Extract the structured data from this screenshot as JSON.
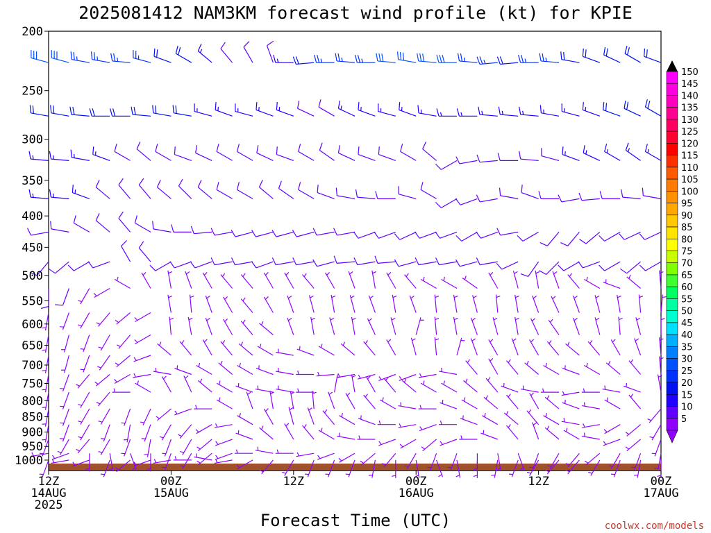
{
  "chart_data": {
    "type": "wind_barb_profile",
    "title": "2025081412 NAM3KM forecast wind profile (kt) for KPIE",
    "xlabel": "Forecast Time (UTC)",
    "ylabel": "",
    "y_scale": "log",
    "ylim": [
      1040,
      200
    ],
    "y_ticks": [
      200,
      250,
      300,
      350,
      400,
      450,
      500,
      550,
      600,
      650,
      700,
      750,
      800,
      850,
      900,
      950,
      1000
    ],
    "x_range_hours": [
      0,
      60
    ],
    "x_ticks": [
      {
        "hour": 0,
        "lines": [
          "12Z",
          "14AUG",
          "2025"
        ]
      },
      {
        "hour": 12,
        "lines": [
          "00Z",
          "15AUG"
        ]
      },
      {
        "hour": 24,
        "lines": [
          "12Z"
        ]
      },
      {
        "hour": 36,
        "lines": [
          "00Z",
          "16AUG"
        ]
      },
      {
        "hour": 48,
        "lines": [
          "12Z"
        ]
      },
      {
        "hour": 60,
        "lines": [
          "00Z",
          "17AUG"
        ]
      }
    ],
    "surface_pressure": 1013,
    "surface_color": "#a0522d",
    "time_step_hours": 2,
    "levels": [
      225,
      275,
      325,
      375,
      425,
      475,
      525,
      575,
      625,
      675,
      725,
      775,
      825,
      875,
      925,
      975,
      1000
    ],
    "wind_dir_deg_by_level": [
      [
        285,
        285,
        280,
        280,
        275,
        285,
        290,
        300,
        310,
        320,
        330,
        340,
        270,
        265,
        270,
        275,
        270,
        275,
        280,
        275,
        270,
        275,
        265,
        265,
        270,
        275,
        280,
        290,
        295,
        300,
        290
      ],
      [
        280,
        280,
        275,
        270,
        270,
        275,
        280,
        280,
        285,
        290,
        285,
        290,
        290,
        295,
        300,
        295,
        290,
        285,
        290,
        280,
        270,
        270,
        275,
        275,
        275,
        280,
        285,
        290,
        290,
        295,
        300
      ],
      [
        275,
        275,
        280,
        290,
        300,
        310,
        300,
        290,
        295,
        300,
        300,
        295,
        290,
        300,
        305,
        295,
        290,
        290,
        300,
        310,
        240,
        260,
        265,
        270,
        275,
        285,
        290,
        295,
        300,
        305,
        300
      ],
      [
        275,
        275,
        290,
        310,
        320,
        320,
        310,
        315,
        310,
        300,
        300,
        310,
        305,
        300,
        290,
        280,
        275,
        270,
        285,
        300,
        240,
        250,
        260,
        280,
        290,
        270,
        260,
        265,
        270,
        275,
        280
      ],
      [
        260,
        280,
        300,
        310,
        320,
        300,
        280,
        270,
        265,
        260,
        255,
        255,
        255,
        255,
        260,
        260,
        250,
        250,
        245,
        250,
        250,
        240,
        250,
        260,
        240,
        220,
        220,
        230,
        240,
        245,
        245
      ],
      [
        220,
        230,
        240,
        250,
        330,
        320,
        240,
        250,
        250,
        260,
        260,
        250,
        260,
        260,
        255,
        265,
        260,
        265,
        255,
        260,
        260,
        255,
        260,
        245,
        215,
        225,
        240,
        250,
        240,
        230,
        240
      ],
      [
        180,
        200,
        210,
        240,
        300,
        330,
        350,
        340,
        330,
        320,
        320,
        330,
        330,
        320,
        330,
        340,
        350,
        330,
        320,
        300,
        300,
        305,
        330,
        345,
        350,
        340,
        320,
        300,
        290,
        310,
        355
      ],
      [
        190,
        200,
        210,
        220,
        230,
        240,
        350,
        355,
        340,
        330,
        320,
        330,
        340,
        345,
        350,
        345,
        340,
        350,
        340,
        355,
        350,
        345,
        355,
        350,
        340,
        335,
        340,
        345,
        350,
        355,
        5
      ],
      [
        190,
        195,
        200,
        210,
        220,
        240,
        355,
        350,
        340,
        330,
        320,
        310,
        340,
        350,
        345,
        350,
        335,
        345,
        15,
        355,
        350,
        340,
        345,
        350,
        335,
        325,
        340,
        345,
        355,
        345,
        0
      ],
      [
        190,
        195,
        200,
        215,
        230,
        250,
        310,
        320,
        330,
        320,
        310,
        300,
        280,
        290,
        300,
        310,
        320,
        330,
        345,
        355,
        15,
        340,
        330,
        340,
        330,
        320,
        310,
        320,
        330,
        340,
        355
      ],
      [
        190,
        200,
        220,
        230,
        240,
        260,
        280,
        290,
        300,
        310,
        300,
        290,
        280,
        270,
        265,
        260,
        255,
        250,
        250,
        260,
        280,
        320,
        330,
        320,
        310,
        300,
        290,
        300,
        310,
        320,
        355
      ],
      [
        190,
        200,
        210,
        220,
        270,
        300,
        330,
        335,
        310,
        300,
        290,
        280,
        280,
        270,
        10,
        350,
        330,
        320,
        310,
        300,
        300,
        310,
        320,
        290,
        280,
        270,
        260,
        270,
        280,
        290,
        350
      ],
      [
        190,
        200,
        210,
        210,
        200,
        205,
        230,
        250,
        270,
        300,
        340,
        350,
        350,
        355,
        340,
        330,
        320,
        300,
        280,
        270,
        290,
        300,
        310,
        320,
        330,
        310,
        290,
        280,
        300,
        320,
        220
      ],
      [
        190,
        200,
        210,
        200,
        190,
        200,
        210,
        220,
        240,
        260,
        300,
        330,
        345,
        340,
        320,
        300,
        290,
        270,
        260,
        250,
        270,
        290,
        300,
        310,
        320,
        300,
        280,
        260,
        240,
        230,
        210
      ],
      [
        200,
        210,
        220,
        210,
        200,
        190,
        200,
        210,
        230,
        250,
        290,
        310,
        330,
        320,
        300,
        280,
        270,
        250,
        240,
        230,
        250,
        270,
        290,
        320,
        340,
        310,
        300,
        280,
        250,
        230,
        200
      ],
      [
        260,
        250,
        180,
        170,
        160,
        180,
        200,
        210,
        230,
        250,
        270,
        280,
        270,
        260,
        250,
        240,
        230,
        220,
        210,
        200,
        200,
        180,
        170,
        160,
        200,
        210,
        220,
        230,
        210,
        200,
        190
      ],
      [
        200,
        260,
        250,
        200,
        230,
        250,
        260,
        270,
        280,
        260,
        240,
        220,
        210,
        200,
        200,
        200,
        190,
        180,
        170,
        160,
        170,
        180,
        190,
        200,
        210,
        220,
        220,
        210,
        200,
        190,
        180
      ]
    ],
    "wind_speed_kt_by_level": [
      [
        28,
        28,
        26,
        26,
        25,
        24,
        22,
        18,
        15,
        12,
        10,
        8,
        16,
        20,
        24,
        25,
        26,
        28,
        30,
        32,
        28,
        26,
        24,
        22,
        24,
        24,
        22,
        20,
        20,
        18,
        18
      ],
      [
        20,
        20,
        20,
        20,
        18,
        18,
        18,
        18,
        16,
        16,
        16,
        14,
        14,
        12,
        12,
        14,
        14,
        16,
        16,
        16,
        16,
        16,
        16,
        16,
        16,
        16,
        16,
        16,
        18,
        18,
        18
      ],
      [
        16,
        16,
        16,
        14,
        12,
        12,
        12,
        12,
        12,
        12,
        12,
        12,
        12,
        12,
        12,
        12,
        12,
        12,
        12,
        12,
        10,
        10,
        12,
        12,
        12,
        12,
        14,
        14,
        14,
        16,
        16
      ],
      [
        14,
        14,
        14,
        12,
        10,
        10,
        10,
        10,
        10,
        10,
        10,
        10,
        10,
        10,
        10,
        10,
        10,
        10,
        10,
        10,
        8,
        8,
        8,
        10,
        10,
        10,
        10,
        10,
        12,
        12,
        12
      ],
      [
        10,
        10,
        10,
        8,
        8,
        8,
        8,
        8,
        8,
        8,
        8,
        8,
        8,
        8,
        8,
        8,
        8,
        8,
        8,
        8,
        8,
        8,
        8,
        8,
        8,
        8,
        8,
        8,
        8,
        8,
        8
      ],
      [
        8,
        8,
        8,
        8,
        8,
        8,
        8,
        8,
        8,
        8,
        8,
        8,
        8,
        8,
        8,
        8,
        8,
        8,
        8,
        8,
        8,
        8,
        8,
        8,
        8,
        8,
        8,
        8,
        8,
        8,
        8
      ],
      [
        8,
        8,
        6,
        6,
        6,
        6,
        6,
        6,
        6,
        6,
        6,
        6,
        6,
        6,
        6,
        6,
        6,
        6,
        6,
        6,
        6,
        6,
        6,
        6,
        6,
        6,
        6,
        6,
        6,
        6,
        6
      ],
      [
        6,
        6,
        6,
        6,
        6,
        6,
        6,
        6,
        6,
        6,
        6,
        6,
        6,
        6,
        6,
        6,
        6,
        6,
        6,
        6,
        6,
        6,
        6,
        6,
        6,
        6,
        6,
        6,
        6,
        6,
        6
      ],
      [
        6,
        6,
        6,
        6,
        6,
        6,
        6,
        6,
        6,
        6,
        6,
        6,
        6,
        6,
        6,
        6,
        6,
        6,
        6,
        6,
        6,
        6,
        6,
        6,
        6,
        6,
        6,
        6,
        6,
        6,
        6
      ],
      [
        6,
        6,
        6,
        6,
        6,
        6,
        6,
        6,
        6,
        6,
        6,
        6,
        6,
        6,
        6,
        6,
        6,
        6,
        6,
        6,
        6,
        6,
        6,
        6,
        6,
        6,
        6,
        6,
        6,
        6,
        6
      ],
      [
        6,
        6,
        6,
        6,
        6,
        6,
        6,
        6,
        6,
        6,
        6,
        6,
        6,
        6,
        6,
        6,
        6,
        6,
        6,
        6,
        6,
        6,
        6,
        6,
        6,
        6,
        6,
        6,
        6,
        6,
        6
      ],
      [
        6,
        6,
        6,
        6,
        6,
        6,
        6,
        6,
        6,
        6,
        6,
        6,
        6,
        6,
        6,
        6,
        6,
        6,
        6,
        6,
        6,
        6,
        6,
        6,
        6,
        6,
        6,
        6,
        6,
        6,
        6
      ],
      [
        6,
        6,
        6,
        6,
        6,
        6,
        6,
        6,
        6,
        6,
        6,
        6,
        6,
        6,
        6,
        6,
        6,
        6,
        6,
        6,
        6,
        6,
        6,
        6,
        6,
        6,
        6,
        6,
        6,
        6,
        6
      ],
      [
        6,
        6,
        6,
        6,
        6,
        6,
        6,
        6,
        6,
        6,
        6,
        6,
        6,
        6,
        6,
        6,
        6,
        6,
        6,
        6,
        6,
        6,
        6,
        6,
        6,
        6,
        6,
        6,
        6,
        6,
        6
      ],
      [
        6,
        6,
        6,
        6,
        6,
        6,
        6,
        6,
        6,
        6,
        6,
        6,
        6,
        6,
        6,
        6,
        6,
        6,
        6,
        6,
        6,
        6,
        6,
        6,
        6,
        6,
        6,
        6,
        6,
        6,
        6
      ],
      [
        6,
        6,
        6,
        6,
        6,
        6,
        6,
        6,
        6,
        6,
        6,
        6,
        6,
        6,
        6,
        6,
        6,
        6,
        6,
        6,
        6,
        6,
        6,
        6,
        6,
        6,
        6,
        6,
        6,
        6,
        6
      ],
      [
        6,
        6,
        6,
        6,
        6,
        6,
        6,
        6,
        6,
        6,
        6,
        6,
        6,
        6,
        6,
        6,
        6,
        6,
        6,
        6,
        6,
        6,
        6,
        6,
        6,
        6,
        6,
        6,
        6,
        6,
        6
      ]
    ],
    "colorbar": {
      "labels": [
        "150",
        "145",
        "140",
        "135",
        "130",
        "125",
        "120",
        "115",
        "110",
        "105",
        "100",
        "95",
        "90",
        "85",
        "80",
        "75",
        "70",
        "65",
        "60",
        "55",
        "50",
        "45",
        "40",
        "35",
        "30",
        "25",
        "20",
        "15",
        "10",
        "5"
      ],
      "values": [
        150,
        145,
        140,
        135,
        130,
        125,
        120,
        115,
        110,
        105,
        100,
        95,
        90,
        85,
        80,
        75,
        70,
        65,
        60,
        55,
        50,
        45,
        40,
        35,
        30,
        25,
        20,
        15,
        10,
        5
      ],
      "colors": [
        "#ff00ff",
        "#ff00e0",
        "#ff00c0",
        "#ff0090",
        "#ff0060",
        "#ff0030",
        "#ff0000",
        "#ff3000",
        "#ff5a00",
        "#ff7a00",
        "#ff9000",
        "#ffa800",
        "#ffc800",
        "#ffe400",
        "#ffff00",
        "#c8ff00",
        "#80ff00",
        "#40ff30",
        "#00ff60",
        "#00ffa0",
        "#00ffd0",
        "#00e0ff",
        "#00b0ff",
        "#0080ff",
        "#0050ff",
        "#0030ff",
        "#0010f0",
        "#2000ff",
        "#6000ff",
        "#9000ff"
      ],
      "top_cap_color": "#000000"
    }
  },
  "credit": "coolwx.com/models"
}
